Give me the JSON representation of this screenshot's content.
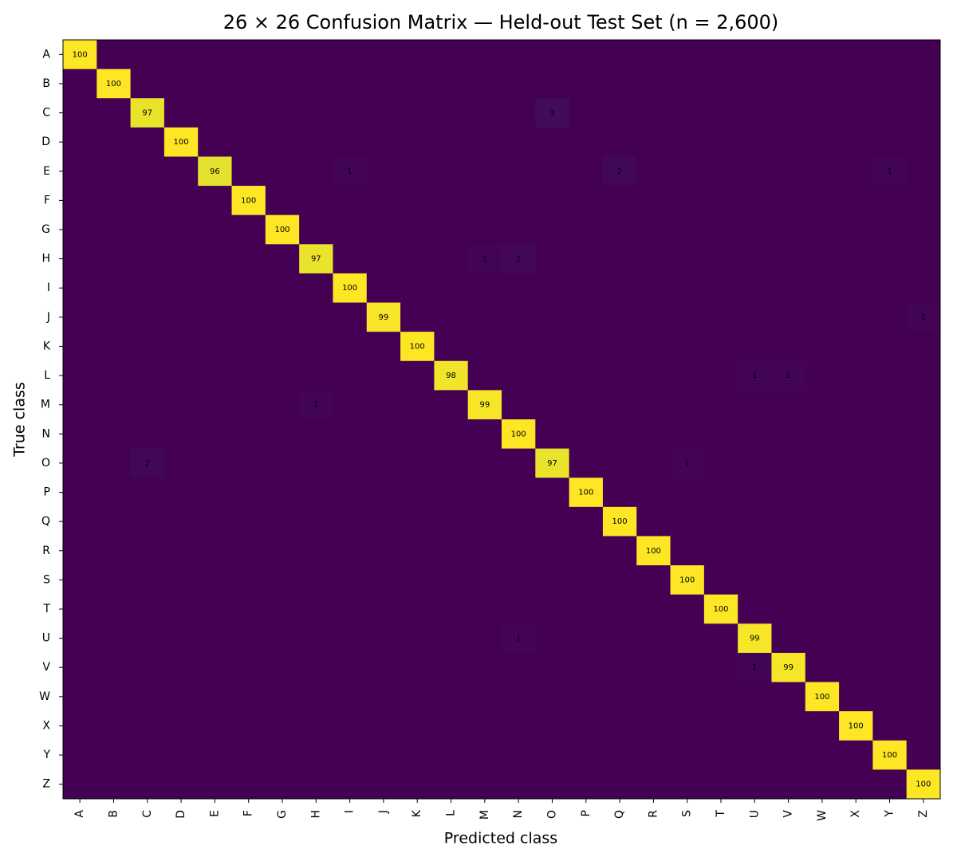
{
  "chart_data": {
    "type": "heatmap",
    "title": "26 × 26 Confusion Matrix — Held-out Test Set (n = 2,600)",
    "xlabel": "Predicted class",
    "ylabel": "True class",
    "colormap": "viridis",
    "x": [
      "A",
      "B",
      "C",
      "D",
      "E",
      "F",
      "G",
      "H",
      "I",
      "J",
      "K",
      "L",
      "M",
      "N",
      "O",
      "P",
      "Q",
      "R",
      "S",
      "T",
      "U",
      "V",
      "W",
      "X",
      "Y",
      "Z"
    ],
    "y": [
      "A",
      "B",
      "C",
      "D",
      "E",
      "F",
      "G",
      "H",
      "I",
      "J",
      "K",
      "L",
      "M",
      "N",
      "O",
      "P",
      "Q",
      "R",
      "S",
      "T",
      "U",
      "V",
      "W",
      "X",
      "Y",
      "Z"
    ],
    "values": [
      [
        100,
        0,
        0,
        0,
        0,
        0,
        0,
        0,
        0,
        0,
        0,
        0,
        0,
        0,
        0,
        0,
        0,
        0,
        0,
        0,
        0,
        0,
        0,
        0,
        0,
        0
      ],
      [
        0,
        100,
        0,
        0,
        0,
        0,
        0,
        0,
        0,
        0,
        0,
        0,
        0,
        0,
        0,
        0,
        0,
        0,
        0,
        0,
        0,
        0,
        0,
        0,
        0,
        0
      ],
      [
        0,
        0,
        97,
        0,
        0,
        0,
        0,
        0,
        0,
        0,
        0,
        0,
        0,
        0,
        3,
        0,
        0,
        0,
        0,
        0,
        0,
        0,
        0,
        0,
        0,
        0
      ],
      [
        0,
        0,
        0,
        100,
        0,
        0,
        0,
        0,
        0,
        0,
        0,
        0,
        0,
        0,
        0,
        0,
        0,
        0,
        0,
        0,
        0,
        0,
        0,
        0,
        0,
        0
      ],
      [
        0,
        0,
        0,
        0,
        96,
        0,
        0,
        0,
        1,
        0,
        0,
        0,
        0,
        0,
        0,
        0,
        2,
        0,
        0,
        0,
        0,
        0,
        0,
        0,
        1,
        0
      ],
      [
        0,
        0,
        0,
        0,
        0,
        100,
        0,
        0,
        0,
        0,
        0,
        0,
        0,
        0,
        0,
        0,
        0,
        0,
        0,
        0,
        0,
        0,
        0,
        0,
        0,
        0
      ],
      [
        0,
        0,
        0,
        0,
        0,
        0,
        100,
        0,
        0,
        0,
        0,
        0,
        0,
        0,
        0,
        0,
        0,
        0,
        0,
        0,
        0,
        0,
        0,
        0,
        0,
        0
      ],
      [
        0,
        0,
        0,
        0,
        0,
        0,
        0,
        97,
        0,
        0,
        0,
        0,
        1,
        2,
        0,
        0,
        0,
        0,
        0,
        0,
        0,
        0,
        0,
        0,
        0,
        0
      ],
      [
        0,
        0,
        0,
        0,
        0,
        0,
        0,
        0,
        100,
        0,
        0,
        0,
        0,
        0,
        0,
        0,
        0,
        0,
        0,
        0,
        0,
        0,
        0,
        0,
        0,
        0
      ],
      [
        0,
        0,
        0,
        0,
        0,
        0,
        0,
        0,
        0,
        99,
        0,
        0,
        0,
        0,
        0,
        0,
        0,
        0,
        0,
        0,
        0,
        0,
        0,
        0,
        0,
        1
      ],
      [
        0,
        0,
        0,
        0,
        0,
        0,
        0,
        0,
        0,
        0,
        100,
        0,
        0,
        0,
        0,
        0,
        0,
        0,
        0,
        0,
        0,
        0,
        0,
        0,
        0,
        0
      ],
      [
        0,
        0,
        0,
        0,
        0,
        0,
        0,
        0,
        0,
        0,
        0,
        98,
        0,
        0,
        0,
        0,
        0,
        0,
        0,
        0,
        1,
        1,
        0,
        0,
        0,
        0
      ],
      [
        0,
        0,
        0,
        0,
        0,
        0,
        0,
        1,
        0,
        0,
        0,
        0,
        99,
        0,
        0,
        0,
        0,
        0,
        0,
        0,
        0,
        0,
        0,
        0,
        0,
        0
      ],
      [
        0,
        0,
        0,
        0,
        0,
        0,
        0,
        0,
        0,
        0,
        0,
        0,
        0,
        100,
        0,
        0,
        0,
        0,
        0,
        0,
        0,
        0,
        0,
        0,
        0,
        0
      ],
      [
        0,
        0,
        2,
        0,
        0,
        0,
        0,
        0,
        0,
        0,
        0,
        0,
        0,
        0,
        97,
        0,
        0,
        0,
        1,
        0,
        0,
        0,
        0,
        0,
        0,
        0
      ],
      [
        0,
        0,
        0,
        0,
        0,
        0,
        0,
        0,
        0,
        0,
        0,
        0,
        0,
        0,
        0,
        100,
        0,
        0,
        0,
        0,
        0,
        0,
        0,
        0,
        0,
        0
      ],
      [
        0,
        0,
        0,
        0,
        0,
        0,
        0,
        0,
        0,
        0,
        0,
        0,
        0,
        0,
        0,
        0,
        100,
        0,
        0,
        0,
        0,
        0,
        0,
        0,
        0,
        0
      ],
      [
        0,
        0,
        0,
        0,
        0,
        0,
        0,
        0,
        0,
        0,
        0,
        0,
        0,
        0,
        0,
        0,
        0,
        100,
        0,
        0,
        0,
        0,
        0,
        0,
        0,
        0
      ],
      [
        0,
        0,
        0,
        0,
        0,
        0,
        0,
        0,
        0,
        0,
        0,
        0,
        0,
        0,
        0,
        0,
        0,
        0,
        100,
        0,
        0,
        0,
        0,
        0,
        0,
        0
      ],
      [
        0,
        0,
        0,
        0,
        0,
        0,
        0,
        0,
        0,
        0,
        0,
        0,
        0,
        0,
        0,
        0,
        0,
        0,
        0,
        100,
        0,
        0,
        0,
        0,
        0,
        0
      ],
      [
        0,
        0,
        0,
        0,
        0,
        0,
        0,
        0,
        0,
        0,
        0,
        0,
        0,
        1,
        0,
        0,
        0,
        0,
        0,
        0,
        99,
        0,
        0,
        0,
        0,
        0
      ],
      [
        0,
        0,
        0,
        0,
        0,
        0,
        0,
        0,
        0,
        0,
        0,
        0,
        0,
        0,
        0,
        0,
        0,
        0,
        0,
        0,
        1,
        99,
        0,
        0,
        0,
        0
      ],
      [
        0,
        0,
        0,
        0,
        0,
        0,
        0,
        0,
        0,
        0,
        0,
        0,
        0,
        0,
        0,
        0,
        0,
        0,
        0,
        0,
        0,
        0,
        100,
        0,
        0,
        0
      ],
      [
        0,
        0,
        0,
        0,
        0,
        0,
        0,
        0,
        0,
        0,
        0,
        0,
        0,
        0,
        0,
        0,
        0,
        0,
        0,
        0,
        0,
        0,
        0,
        100,
        0,
        0
      ],
      [
        0,
        0,
        0,
        0,
        0,
        0,
        0,
        0,
        0,
        0,
        0,
        0,
        0,
        0,
        0,
        0,
        0,
        0,
        0,
        0,
        0,
        0,
        0,
        0,
        100,
        0
      ],
      [
        0,
        0,
        0,
        0,
        0,
        0,
        0,
        0,
        0,
        0,
        0,
        0,
        0,
        0,
        0,
        0,
        0,
        0,
        0,
        0,
        0,
        0,
        0,
        0,
        0,
        100
      ]
    ]
  }
}
